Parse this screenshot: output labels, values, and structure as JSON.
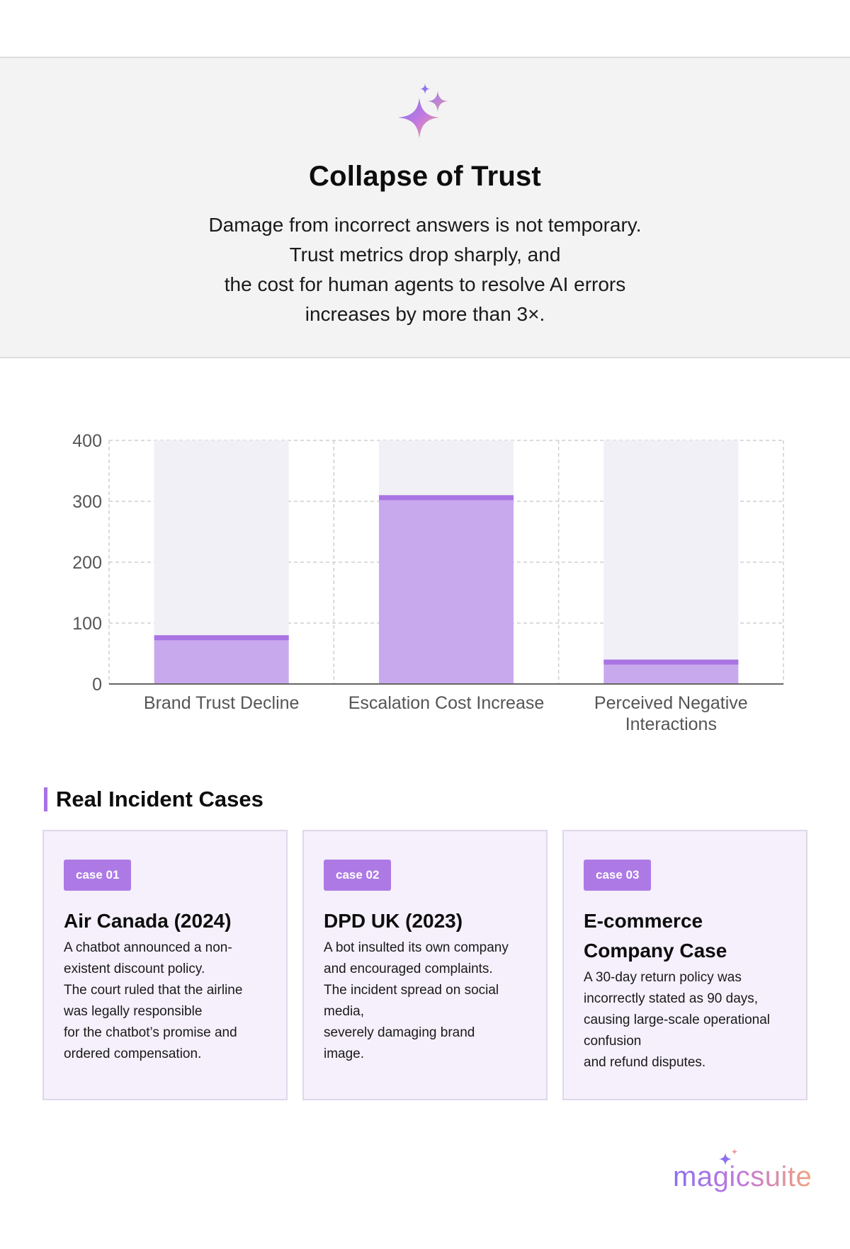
{
  "hero": {
    "title": "Collapse of Trust",
    "description_lines": [
      "Damage from incorrect answers is not temporary.",
      "Trust metrics drop sharply, and",
      "the cost for human agents to resolve AI errors",
      "increases by more than 3×."
    ],
    "icon": "sparkle-icon"
  },
  "chart_data": {
    "type": "bar",
    "title": "",
    "xlabel": "",
    "ylabel": "",
    "ylim": [
      0,
      400
    ],
    "yticks": [
      0,
      100,
      200,
      300,
      400
    ],
    "categories": [
      "Brand Trust Decline",
      "Escalation Cost Increase",
      "Perceived Negative Interactions"
    ],
    "category_label_lines": [
      [
        "Brand Trust Decline"
      ],
      [
        "Escalation Cost Increase"
      ],
      [
        "Perceived Negative",
        "Interactions"
      ]
    ],
    "values": [
      80,
      310,
      40
    ],
    "grid": true,
    "colors": {
      "bar": "#c9a9ed",
      "bar_top": "#a974e3",
      "track": "#f0f0f6"
    }
  },
  "incidents": {
    "title": "Real Incident Cases",
    "cases": [
      {
        "badge": "case 01",
        "title_lines": [
          "Air Canada (2024)"
        ],
        "text_lines": [
          "A chatbot announced a non-",
          "existent discount policy.",
          " The court ruled that the airline",
          "was legally responsible",
          " for the chatbot’s promise and",
          "ordered compensation."
        ]
      },
      {
        "badge": "case 02",
        "title_lines": [
          "DPD UK (2023)"
        ],
        "text_lines": [
          "A bot insulted its own company",
          "and encouraged complaints.",
          " The incident spread on social",
          "media,",
          " severely damaging brand",
          "image."
        ]
      },
      {
        "badge": "case 03",
        "title_lines": [
          "E-commerce",
          "Company Case"
        ],
        "text_lines": [
          "A 30-day return policy was",
          "incorrectly stated as 90 days,",
          " causing large-scale operational",
          "confusion",
          " and refund disputes."
        ]
      }
    ]
  },
  "brand": {
    "logo_text": "magicsuite",
    "colors": {
      "start": "#8a6ff0",
      "end": "#f0a27c"
    }
  }
}
